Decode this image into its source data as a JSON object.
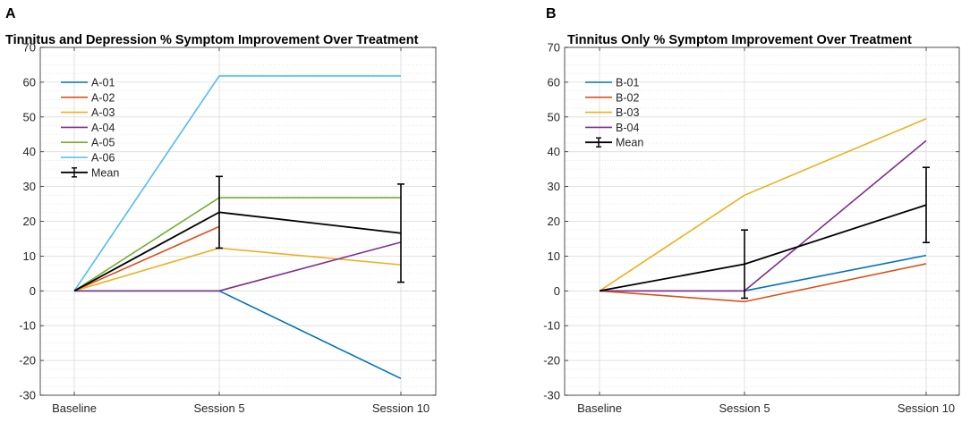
{
  "chart_data": [
    {
      "panel_label": "A",
      "type": "line",
      "title": "Tinnitus and Depression % Symptom Improvement Over Treatment",
      "xlabel": "",
      "ylabel": "",
      "categories": [
        "Baseline",
        "Session 5",
        "Session 10"
      ],
      "ylim": [
        -30,
        70
      ],
      "yticks": [
        -30,
        -20,
        -10,
        0,
        10,
        20,
        30,
        40,
        50,
        60,
        70
      ],
      "grid": true,
      "legend_position": "top-left",
      "series": [
        {
          "name": "A-01",
          "color": "#0072BD",
          "values": [
            0,
            0,
            -25.2
          ]
        },
        {
          "name": "A-02",
          "color": "#D95319",
          "values": [
            0,
            18.5,
            null
          ]
        },
        {
          "name": "A-03",
          "color": "#EDB120",
          "values": [
            0,
            12.3,
            7.5
          ]
        },
        {
          "name": "A-04",
          "color": "#7E2F8E",
          "values": [
            0,
            0,
            14
          ]
        },
        {
          "name": "A-05",
          "color": "#77AC30",
          "values": [
            0,
            26.8,
            26.8
          ]
        },
        {
          "name": "A-06",
          "color": "#4DBEEE",
          "values": [
            0,
            61.8,
            61.8
          ]
        }
      ],
      "mean": {
        "name": "Mean",
        "color": "#000000",
        "values": [
          0,
          22.6,
          16.6
        ],
        "errors": [
          0,
          10.3,
          14.1
        ]
      }
    },
    {
      "panel_label": "B",
      "type": "line",
      "title": "Tinnitus Only % Symptom Improvement Over Treatment",
      "xlabel": "",
      "ylabel": "",
      "categories": [
        "Baseline",
        "Session 5",
        "Session 10"
      ],
      "ylim": [
        -30,
        70
      ],
      "yticks": [
        -30,
        -20,
        -10,
        0,
        10,
        20,
        30,
        40,
        50,
        60,
        70
      ],
      "grid": true,
      "legend_position": "top-left",
      "series": [
        {
          "name": "B-01",
          "color": "#0072BD",
          "values": [
            0,
            0,
            10.2
          ]
        },
        {
          "name": "B-02",
          "color": "#D95319",
          "values": [
            0,
            -3.1,
            7.8
          ]
        },
        {
          "name": "B-03",
          "color": "#EDB120",
          "values": [
            0,
            27.5,
            49.5
          ]
        },
        {
          "name": "B-04",
          "color": "#7E2F8E",
          "values": [
            0,
            0,
            43.2
          ]
        }
      ],
      "mean": {
        "name": "Mean",
        "color": "#000000",
        "values": [
          0,
          7.7,
          24.7
        ],
        "errors": [
          0,
          9.8,
          10.8
        ]
      }
    }
  ]
}
